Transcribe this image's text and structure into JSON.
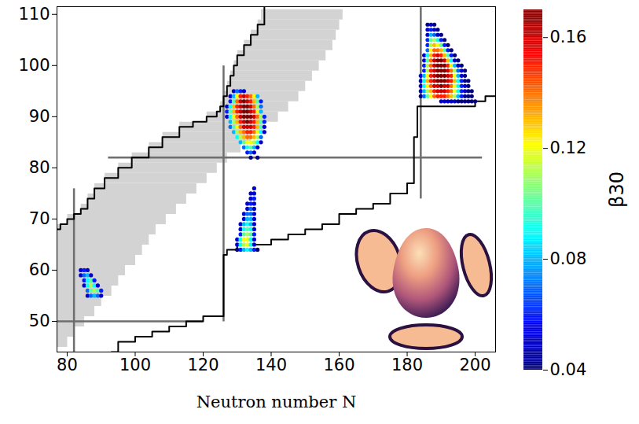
{
  "chart_data": {
    "type": "scatter",
    "x_label": "Neutron number N",
    "xlim": [
      77,
      206
    ],
    "xticks": [
      80,
      100,
      120,
      140,
      160,
      180,
      200
    ],
    "ylim": [
      44,
      111.5
    ],
    "yticks": [
      50,
      60,
      70,
      80,
      90,
      100,
      110
    ],
    "known_nuclei": {
      "color": "#d3d3d3",
      "Z": [
        46,
        48,
        50,
        52,
        54,
        56,
        58,
        60,
        62,
        64,
        66,
        68,
        70,
        72,
        74,
        76,
        78,
        80,
        82,
        84,
        86,
        88,
        90,
        92,
        94,
        96,
        98,
        100,
        102,
        104,
        106,
        108,
        110
      ],
      "N_min": [
        77,
        77,
        77,
        77,
        77,
        77,
        77,
        77,
        77,
        77,
        77,
        77,
        80,
        84,
        86,
        88,
        91,
        95,
        99,
        104,
        108,
        113,
        121,
        125,
        126,
        127,
        128,
        129,
        130,
        132,
        134,
        136,
        137
      ],
      "N_max": [
        80,
        82,
        85,
        88,
        90,
        93,
        95,
        97,
        100,
        102,
        104,
        106,
        109,
        112,
        115,
        118,
        121,
        124,
        127,
        131,
        134,
        138,
        142,
        145,
        148,
        150,
        152,
        154,
        156,
        158,
        159,
        160,
        161
      ]
    },
    "magic_lines": [
      {
        "N": 82,
        "Z": [
          44,
          76
        ],
        "color": "#6e6e6e"
      },
      {
        "N": 126,
        "Z": [
          50,
          100
        ],
        "color": "#6e6e6e"
      },
      {
        "N": 184,
        "Z": [
          74,
          111.5
        ],
        "color": "#6e6e6e"
      },
      {
        "Z": 50,
        "N": [
          77,
          120
        ],
        "color": "#6e6e6e"
      },
      {
        "Z": 82,
        "N": [
          92,
          202
        ],
        "color": "#6e6e6e"
      }
    ],
    "drip_lines": [
      {
        "color": "#000000",
        "N": [
          77,
          78,
          80,
          82,
          84,
          86,
          88,
          91,
          95,
          99,
          104,
          108,
          113,
          117,
          121,
          124,
          125,
          126,
          127,
          128,
          129,
          130,
          132,
          134,
          136,
          138
        ],
        "Z": [
          68,
          69,
          70,
          71,
          72,
          74,
          76,
          78,
          80,
          82,
          84,
          86,
          88,
          89,
          90,
          91,
          92,
          94,
          96,
          98,
          100,
          102,
          104,
          106,
          108,
          111.5
        ]
      },
      {
        "color": "#000000",
        "N": [
          93,
          95,
          100,
          105,
          110,
          115,
          120,
          126,
          126,
          127,
          130,
          136,
          140,
          145,
          150,
          155,
          160,
          165,
          170,
          175,
          180,
          182,
          182,
          183,
          198,
          200,
          203,
          206
        ],
        "Z": [
          44,
          46,
          47,
          48,
          49,
          50,
          51,
          51,
          63,
          64,
          65,
          65,
          66,
          67,
          68,
          69,
          71,
          72,
          73,
          75,
          77,
          80,
          86,
          92,
          92,
          93,
          94,
          94
        ]
      }
    ],
    "points": [
      {
        "Z": 60,
        "N": [
          84,
          85,
          86
        ],
        "beta30": [
          0.05,
          0.06,
          0.05
        ]
      },
      {
        "Z": 59,
        "N": [
          84,
          85,
          86,
          87
        ],
        "beta30": [
          0.05,
          0.07,
          0.08,
          0.05
        ]
      },
      {
        "Z": 58,
        "N": [
          85,
          86,
          87,
          88
        ],
        "beta30": [
          0.06,
          0.09,
          0.1,
          0.06
        ]
      },
      {
        "Z": 57,
        "N": [
          85,
          86,
          87,
          88,
          89
        ],
        "beta30": [
          0.05,
          0.09,
          0.11,
          0.09,
          0.05
        ]
      },
      {
        "Z": 56,
        "N": [
          86,
          87,
          88,
          89,
          90
        ],
        "beta30": [
          0.07,
          0.1,
          0.11,
          0.1,
          0.06
        ]
      },
      {
        "Z": 55,
        "N": [
          86,
          87,
          88,
          89,
          90
        ],
        "beta30": [
          0.05,
          0.07,
          0.08,
          0.07,
          0.05
        ]
      },
      {
        "Z": 76,
        "N": [
          135
        ],
        "beta30": [
          0.05
        ]
      },
      {
        "Z": 75,
        "N": [
          134,
          135
        ],
        "beta30": [
          0.05,
          0.05
        ]
      },
      {
        "Z": 74,
        "N": [
          134,
          135
        ],
        "beta30": [
          0.05,
          0.06
        ]
      },
      {
        "Z": 73,
        "N": [
          133,
          134,
          135
        ],
        "beta30": [
          0.05,
          0.06,
          0.05
        ]
      },
      {
        "Z": 72,
        "N": [
          133,
          134,
          135
        ],
        "beta30": [
          0.05,
          0.07,
          0.05
        ]
      },
      {
        "Z": 71,
        "N": [
          132,
          133,
          134,
          135
        ],
        "beta30": [
          0.05,
          0.07,
          0.07,
          0.05
        ]
      },
      {
        "Z": 70,
        "N": [
          132,
          133,
          134,
          135
        ],
        "beta30": [
          0.05,
          0.08,
          0.08,
          0.05
        ]
      },
      {
        "Z": 69,
        "N": [
          131,
          132,
          133,
          134,
          135
        ],
        "beta30": [
          0.05,
          0.08,
          0.09,
          0.08,
          0.05
        ]
      },
      {
        "Z": 68,
        "N": [
          131,
          132,
          133,
          134,
          135
        ],
        "beta30": [
          0.05,
          0.09,
          0.1,
          0.09,
          0.05
        ]
      },
      {
        "Z": 67,
        "N": [
          131,
          132,
          133,
          134,
          135
        ],
        "beta30": [
          0.06,
          0.1,
          0.11,
          0.1,
          0.06
        ]
      },
      {
        "Z": 66,
        "N": [
          130,
          131,
          132,
          133,
          134,
          135
        ],
        "beta30": [
          0.05,
          0.09,
          0.12,
          0.12,
          0.09,
          0.05
        ]
      },
      {
        "Z": 65,
        "N": [
          130,
          131,
          132,
          133,
          134,
          135
        ],
        "beta30": [
          0.05,
          0.09,
          0.11,
          0.12,
          0.09,
          0.05
        ]
      },
      {
        "Z": 64,
        "N": [
          130,
          131,
          132,
          133,
          134,
          135,
          136
        ],
        "beta30": [
          0.04,
          0.06,
          0.08,
          0.09,
          0.08,
          0.06,
          0.04
        ]
      },
      {
        "Z": 95,
        "N": [
          129,
          130,
          131,
          132
        ],
        "beta30": [
          0.05,
          0.07,
          0.06,
          0.05
        ]
      },
      {
        "Z": 94,
        "N": [
          128,
          129,
          130,
          131,
          132,
          133,
          134,
          135,
          136
        ],
        "beta30": [
          0.05,
          0.08,
          0.12,
          0.15,
          0.16,
          0.15,
          0.14,
          0.12,
          0.08
        ]
      },
      {
        "Z": 93,
        "N": [
          128,
          129,
          130,
          131,
          132,
          133,
          134,
          135,
          136,
          137
        ],
        "beta30": [
          0.06,
          0.1,
          0.14,
          0.16,
          0.17,
          0.16,
          0.15,
          0.13,
          0.1,
          0.06
        ]
      },
      {
        "Z": 92,
        "N": [
          127,
          128,
          129,
          130,
          131,
          132,
          133,
          134,
          135,
          136,
          137
        ],
        "beta30": [
          0.05,
          0.09,
          0.13,
          0.15,
          0.16,
          0.17,
          0.17,
          0.16,
          0.14,
          0.11,
          0.07
        ]
      },
      {
        "Z": 91,
        "N": [
          127,
          128,
          129,
          130,
          131,
          132,
          133,
          134,
          135,
          136,
          137
        ],
        "beta30": [
          0.06,
          0.1,
          0.13,
          0.15,
          0.16,
          0.17,
          0.17,
          0.16,
          0.15,
          0.12,
          0.08
        ]
      },
      {
        "Z": 90,
        "N": [
          127,
          128,
          129,
          130,
          131,
          132,
          133,
          134,
          135,
          136,
          137,
          138
        ],
        "beta30": [
          0.05,
          0.09,
          0.12,
          0.14,
          0.16,
          0.17,
          0.17,
          0.17,
          0.16,
          0.14,
          0.11,
          0.06
        ]
      },
      {
        "Z": 89,
        "N": [
          128,
          129,
          130,
          131,
          132,
          133,
          134,
          135,
          136,
          137,
          138
        ],
        "beta30": [
          0.08,
          0.11,
          0.13,
          0.15,
          0.16,
          0.17,
          0.16,
          0.15,
          0.13,
          0.1,
          0.06
        ]
      },
      {
        "Z": 88,
        "N": [
          128,
          129,
          130,
          131,
          132,
          133,
          134,
          135,
          136,
          137,
          138
        ],
        "beta30": [
          0.07,
          0.1,
          0.12,
          0.14,
          0.16,
          0.16,
          0.16,
          0.15,
          0.13,
          0.1,
          0.05
        ]
      },
      {
        "Z": 87,
        "N": [
          129,
          130,
          131,
          132,
          133,
          134,
          135,
          136,
          137,
          138
        ],
        "beta30": [
          0.08,
          0.11,
          0.13,
          0.14,
          0.15,
          0.15,
          0.14,
          0.12,
          0.09,
          0.05
        ]
      },
      {
        "Z": 86,
        "N": [
          130,
          131,
          132,
          133,
          134,
          135,
          136,
          137
        ],
        "beta30": [
          0.09,
          0.11,
          0.13,
          0.14,
          0.14,
          0.13,
          0.11,
          0.07
        ]
      },
      {
        "Z": 85,
        "N": [
          131,
          132,
          133,
          134,
          135,
          136,
          137
        ],
        "beta30": [
          0.08,
          0.1,
          0.12,
          0.12,
          0.11,
          0.09,
          0.05
        ]
      },
      {
        "Z": 84,
        "N": [
          132,
          133,
          134,
          135,
          136
        ],
        "beta30": [
          0.07,
          0.09,
          0.1,
          0.08,
          0.05
        ]
      },
      {
        "Z": 83,
        "N": [
          133,
          134,
          135
        ],
        "beta30": [
          0.06,
          0.07,
          0.05
        ]
      },
      {
        "Z": 82,
        "N": [
          134,
          136
        ],
        "beta30": [
          0.04,
          0.04
        ]
      },
      {
        "Z": 108,
        "N": [
          186,
          187,
          188
        ],
        "beta30": [
          0.04,
          0.05,
          0.04
        ]
      },
      {
        "Z": 107,
        "N": [
          186,
          187,
          188,
          189
        ],
        "beta30": [
          0.05,
          0.06,
          0.05,
          0.04
        ]
      },
      {
        "Z": 106,
        "N": [
          186,
          187,
          188,
          189,
          190
        ],
        "beta30": [
          0.05,
          0.08,
          0.07,
          0.05,
          0.04
        ]
      },
      {
        "Z": 105,
        "N": [
          186,
          187,
          188,
          189,
          190,
          191
        ],
        "beta30": [
          0.06,
          0.1,
          0.11,
          0.09,
          0.06,
          0.04
        ]
      },
      {
        "Z": 104,
        "N": [
          186,
          187,
          188,
          189,
          190,
          191,
          192
        ],
        "beta30": [
          0.06,
          0.11,
          0.13,
          0.12,
          0.1,
          0.06,
          0.04
        ]
      },
      {
        "Z": 103,
        "N": [
          186,
          187,
          188,
          189,
          190,
          191,
          192,
          193
        ],
        "beta30": [
          0.07,
          0.12,
          0.14,
          0.14,
          0.13,
          0.1,
          0.06,
          0.04
        ]
      },
      {
        "Z": 102,
        "N": [
          185,
          186,
          187,
          188,
          189,
          190,
          191,
          192,
          193,
          194
        ],
        "beta30": [
          0.05,
          0.09,
          0.13,
          0.15,
          0.16,
          0.15,
          0.13,
          0.1,
          0.06,
          0.04
        ]
      },
      {
        "Z": 101,
        "N": [
          185,
          186,
          187,
          188,
          189,
          190,
          191,
          192,
          193,
          194,
          195
        ],
        "beta30": [
          0.05,
          0.1,
          0.14,
          0.16,
          0.17,
          0.17,
          0.16,
          0.13,
          0.09,
          0.05,
          0.04
        ]
      },
      {
        "Z": 100,
        "N": [
          185,
          186,
          187,
          188,
          189,
          190,
          191,
          192,
          193,
          194,
          195,
          196
        ],
        "beta30": [
          0.06,
          0.11,
          0.14,
          0.16,
          0.17,
          0.17,
          0.17,
          0.15,
          0.12,
          0.08,
          0.05,
          0.04
        ]
      },
      {
        "Z": 99,
        "N": [
          185,
          186,
          187,
          188,
          189,
          190,
          191,
          192,
          193,
          194,
          195,
          196,
          197
        ],
        "beta30": [
          0.06,
          0.11,
          0.15,
          0.16,
          0.17,
          0.17,
          0.17,
          0.16,
          0.14,
          0.11,
          0.07,
          0.05,
          0.04
        ]
      },
      {
        "Z": 98,
        "N": [
          184,
          185,
          186,
          187,
          188,
          189,
          190,
          191,
          192,
          193,
          194,
          195,
          196,
          197
        ],
        "beta30": [
          0.05,
          0.08,
          0.12,
          0.15,
          0.16,
          0.17,
          0.17,
          0.17,
          0.16,
          0.15,
          0.12,
          0.08,
          0.05,
          0.04
        ]
      },
      {
        "Z": 97,
        "N": [
          184,
          185,
          186,
          187,
          188,
          189,
          190,
          191,
          192,
          193,
          194,
          195,
          196,
          197,
          198
        ],
        "beta30": [
          0.05,
          0.09,
          0.13,
          0.15,
          0.16,
          0.17,
          0.17,
          0.17,
          0.16,
          0.15,
          0.13,
          0.09,
          0.06,
          0.04,
          0.04
        ]
      },
      {
        "Z": 96,
        "N": [
          184,
          185,
          186,
          187,
          188,
          189,
          190,
          191,
          192,
          193,
          194,
          195,
          196,
          197,
          198
        ],
        "beta30": [
          0.05,
          0.09,
          0.12,
          0.14,
          0.16,
          0.16,
          0.17,
          0.16,
          0.16,
          0.14,
          0.12,
          0.09,
          0.06,
          0.05,
          0.04
        ]
      },
      {
        "Z": 95,
        "N": [
          184,
          185,
          186,
          187,
          188,
          189,
          190,
          191,
          192,
          193,
          194,
          195,
          196,
          197,
          198,
          199
        ],
        "beta30": [
          0.05,
          0.08,
          0.11,
          0.13,
          0.15,
          0.16,
          0.16,
          0.16,
          0.15,
          0.14,
          0.12,
          0.09,
          0.06,
          0.05,
          0.04,
          0.04
        ]
      },
      {
        "Z": 94,
        "N": [
          184,
          185,
          186,
          187,
          188,
          189,
          190,
          191,
          192,
          193,
          194,
          195,
          196,
          197,
          198,
          199
        ],
        "beta30": [
          0.04,
          0.07,
          0.1,
          0.12,
          0.14,
          0.15,
          0.15,
          0.15,
          0.14,
          0.13,
          0.11,
          0.08,
          0.06,
          0.04,
          0.04,
          0.04
        ]
      },
      {
        "Z": 93,
        "N": [
          190,
          191,
          192,
          193,
          194,
          195,
          196,
          197,
          198,
          199,
          200
        ],
        "beta30": [
          0.05,
          0.05,
          0.05,
          0.05,
          0.05,
          0.04,
          0.04,
          0.04,
          0.04,
          0.04,
          0.04
        ]
      }
    ],
    "colorbar": {
      "label": "β30",
      "lim": [
        0.04,
        0.17
      ],
      "ticks": [
        0.04,
        0.08,
        0.12,
        0.16
      ]
    }
  }
}
